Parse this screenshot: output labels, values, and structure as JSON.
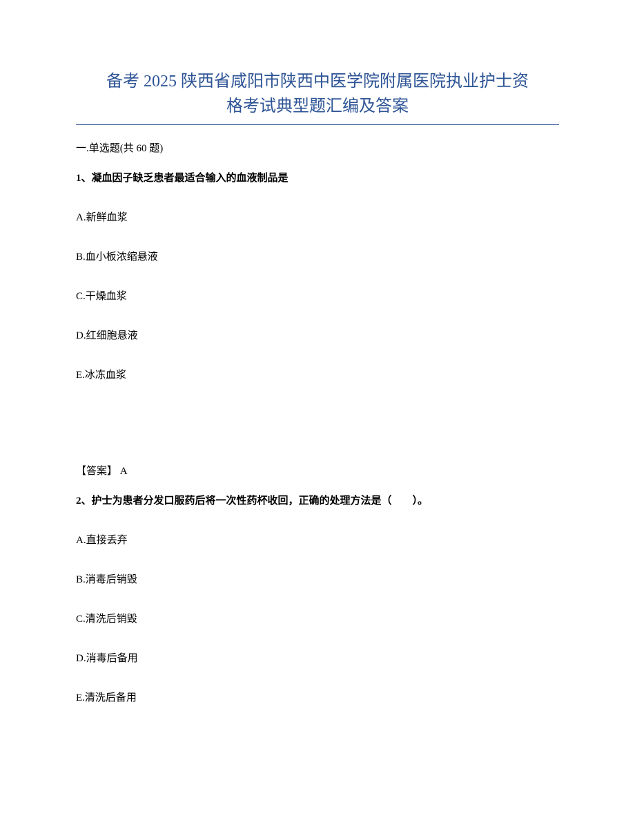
{
  "title_line1": "备考 2025 陕西省咸阳市陕西中医学院附属医院执业护士资",
  "title_line2": "格考试典型题汇编及答案",
  "section": {
    "prefix": "一",
    "label": ".单选题(共 60 题)"
  },
  "q1": {
    "number": "1、",
    "text": "凝血因子缺乏患者最适合输入的血液制品是",
    "options": {
      "A": "A.新鲜血浆",
      "B": "B.血小板浓缩悬液",
      "C": "C.干燥血浆",
      "D": "D.红细胞悬液",
      "E": "E.冰冻血浆"
    },
    "answer_label": "【答案】",
    "answer_value": " A"
  },
  "q2": {
    "number": "2、",
    "text": "护士为患者分发口服药后将一次性药杯收回，正确的处理方法是（　　）。",
    "options": {
      "A": "A.直接丢弃",
      "B": "B.消毒后销毁",
      "C": "C.清洗后销毁",
      "D": "D.消毒后备用",
      "E": "E.清洗后备用"
    }
  },
  "colors": {
    "title_color": "#2e5496",
    "text_color": "#000000",
    "background": "#ffffff",
    "divider": "#2e5496"
  },
  "typography": {
    "title_fontsize": 24,
    "body_fontsize": 15,
    "font_family": "SimSun"
  }
}
